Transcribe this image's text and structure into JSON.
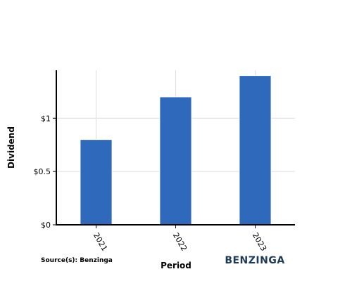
{
  "chart_data": {
    "type": "bar",
    "categories": [
      "2021",
      "2022",
      "2023"
    ],
    "values": [
      0.8,
      1.2,
      1.4
    ],
    "xlabel": "Period",
    "ylabel": "Dividend",
    "ylim": [
      0,
      1.45
    ],
    "yticks": [
      {
        "value": 0,
        "label": "$0"
      },
      {
        "value": 0.5,
        "label": "$0.5"
      },
      {
        "value": 1,
        "label": "$1"
      }
    ],
    "grid": true,
    "bar_color": "#2e69bc"
  },
  "source_text": "Source(s): Benzinga",
  "logo_text": "BENZINGA"
}
